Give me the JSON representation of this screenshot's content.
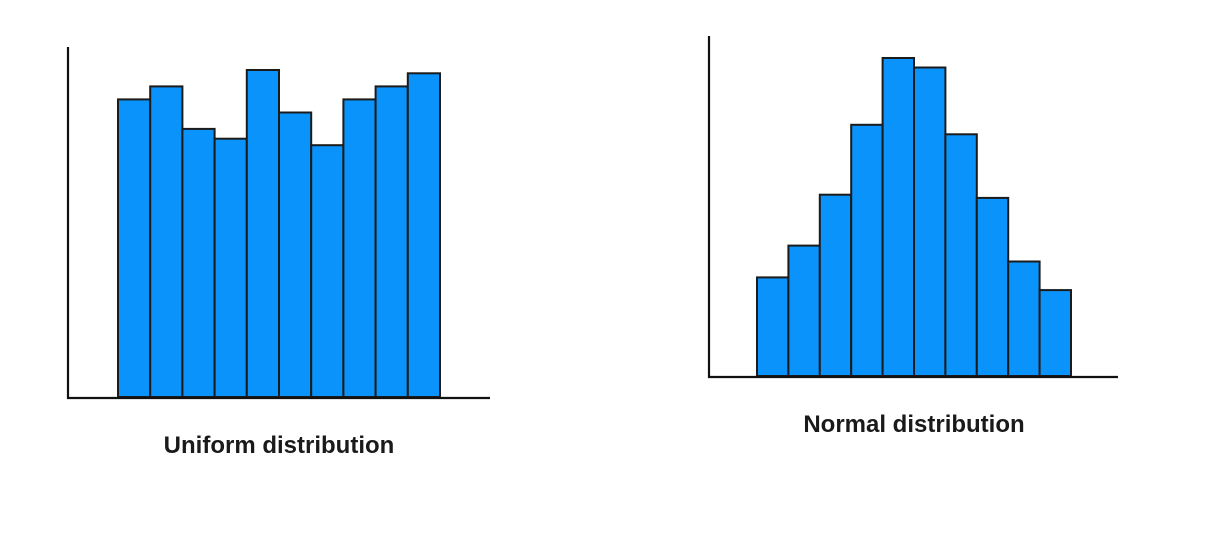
{
  "colors": {
    "bar_fill": "#0a93fb",
    "bar_stroke": "#1b1b1b",
    "axis": "#111111"
  },
  "chart_data": [
    {
      "type": "bar",
      "title": "Uniform distribution",
      "xlabel": "",
      "ylabel": "",
      "grid": false,
      "ylim": [
        0,
        100
      ],
      "values": [
        91,
        95,
        82,
        79,
        100,
        87,
        77,
        91,
        95,
        99
      ]
    },
    {
      "type": "bar",
      "title": "Normal distribution",
      "xlabel": "",
      "ylabel": "",
      "grid": false,
      "ylim": [
        0,
        100
      ],
      "values": [
        31,
        41,
        57,
        79,
        100,
        97,
        76,
        56,
        36,
        27
      ]
    }
  ]
}
